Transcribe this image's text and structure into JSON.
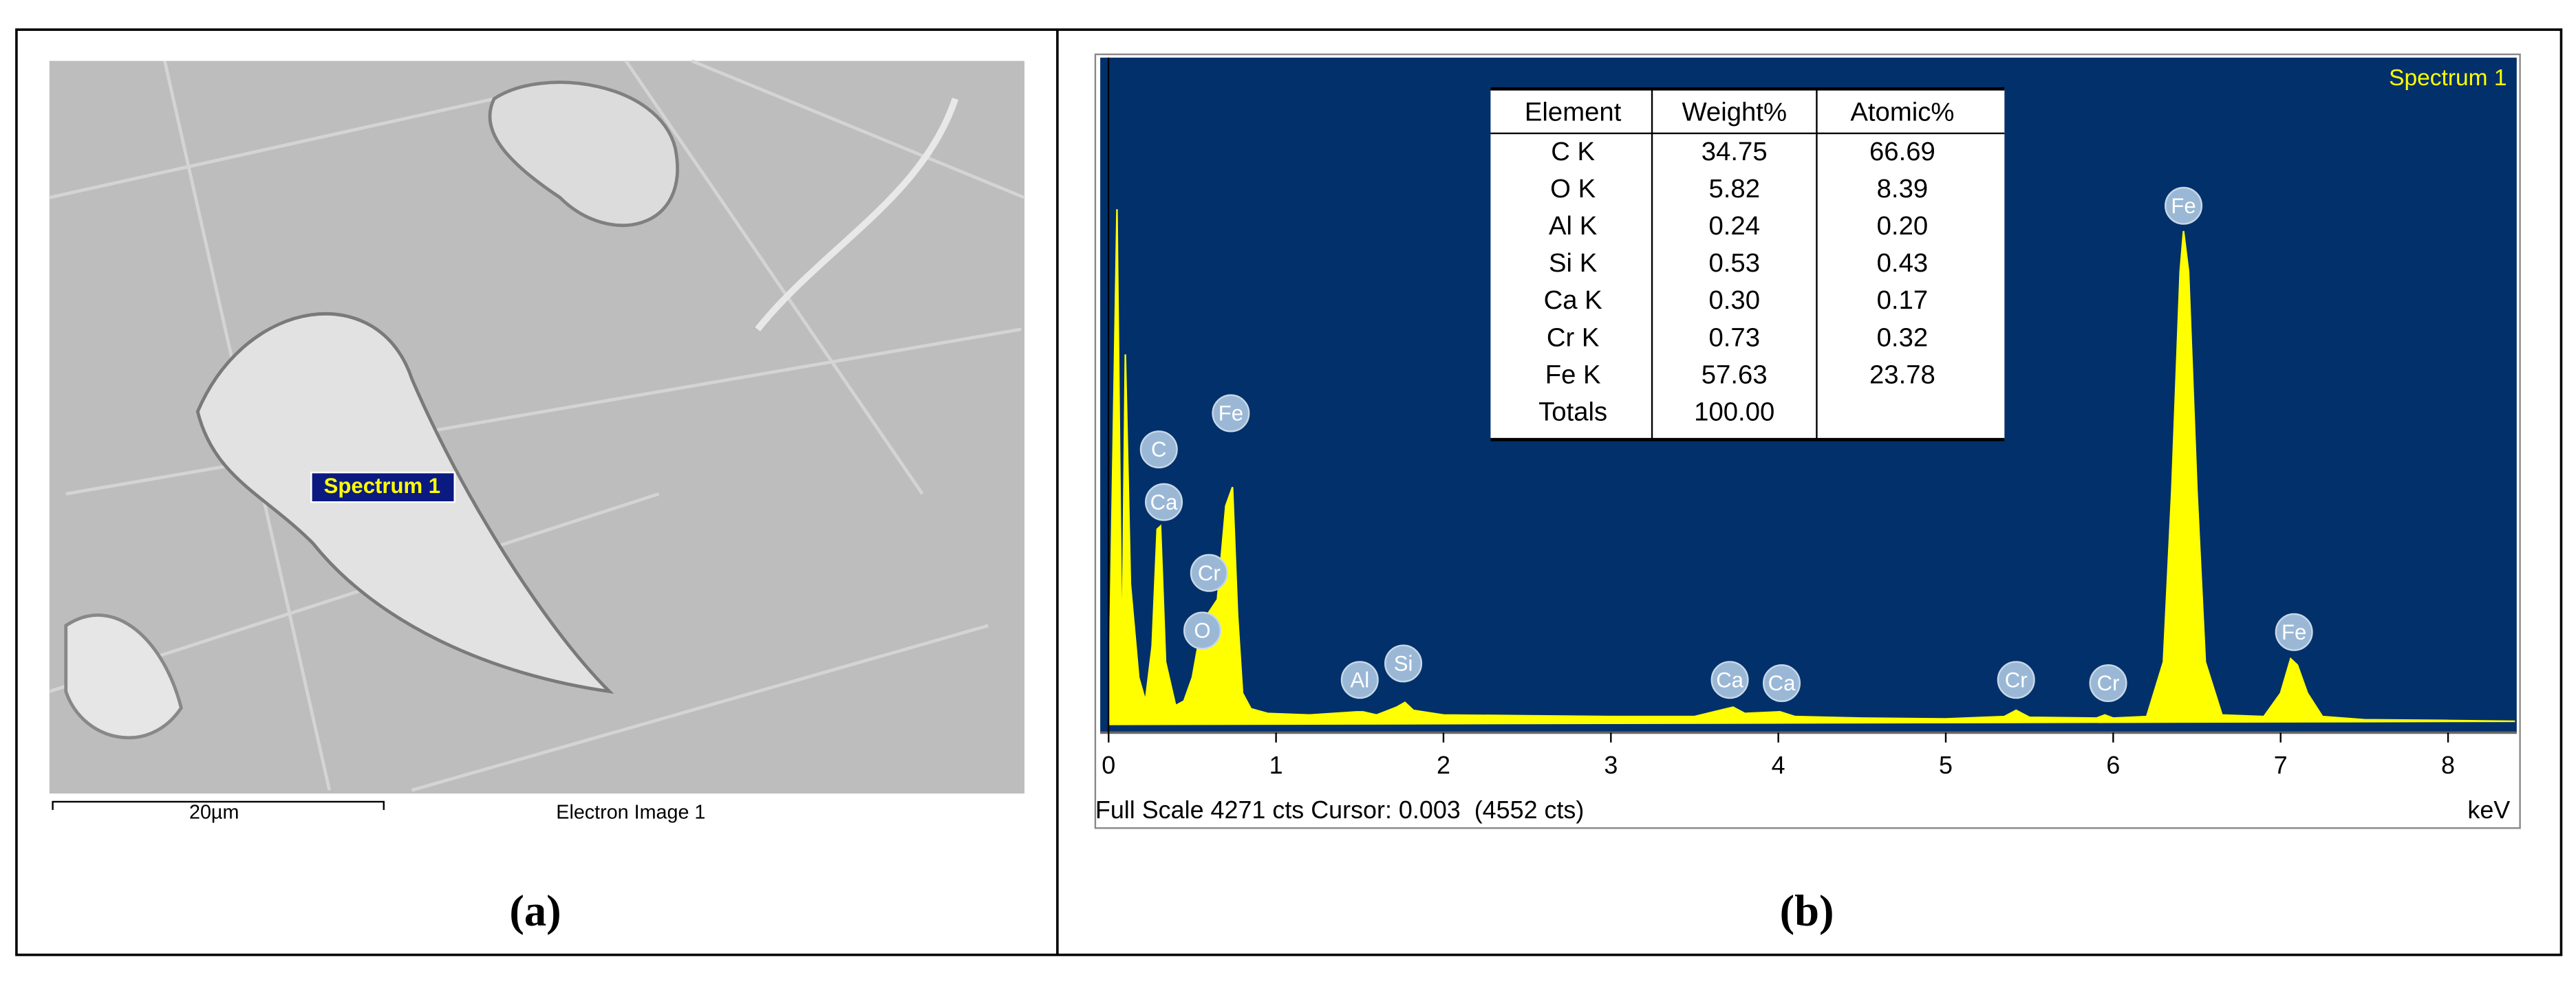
{
  "panel_a": {
    "spectrum_label": "Spectrum 1",
    "scale_bar": "20µm",
    "image_label": "Electron Image 1",
    "caption": "(a)"
  },
  "chart_data": {
    "type": "area",
    "title": "Spectrum 1",
    "color": "#ffff00",
    "background": "#02306a",
    "x": [
      0,
      0.05,
      0.08,
      0.1,
      0.13,
      0.18,
      0.22,
      0.26,
      0.29,
      0.31,
      0.34,
      0.4,
      0.45,
      0.5,
      0.55,
      0.6,
      0.65,
      0.7,
      0.74,
      0.77,
      0.8,
      0.85,
      0.95,
      1.2,
      1.48,
      1.52,
      1.6,
      1.72,
      1.77,
      1.82,
      2.0,
      2.5,
      3.0,
      3.5,
      3.69,
      3.73,
      3.8,
      4.01,
      4.1,
      4.5,
      5.0,
      5.35,
      5.42,
      5.5,
      5.9,
      5.95,
      6.0,
      6.2,
      6.3,
      6.35,
      6.4,
      6.42,
      6.45,
      6.5,
      6.55,
      6.65,
      6.9,
      7.0,
      7.06,
      7.1,
      7.16,
      7.25,
      7.5,
      8.0,
      8.4
    ],
    "values": [
      0,
      3300,
      300,
      2370,
      900,
      300,
      150,
      500,
      1250,
      1270,
      400,
      120,
      150,
      300,
      600,
      720,
      800,
      1400,
      1520,
      700,
      200,
      100,
      70,
      60,
      80,
      80,
      60,
      110,
      140,
      90,
      60,
      55,
      50,
      50,
      100,
      110,
      70,
      80,
      50,
      40,
      35,
      50,
      90,
      45,
      40,
      60,
      40,
      50,
      400,
      1500,
      2900,
      3160,
      2900,
      1500,
      400,
      60,
      50,
      200,
      420,
      380,
      200,
      50,
      30,
      25,
      20
    ],
    "xlim": [
      -0.05,
      8.41
    ],
    "xticks": [
      0,
      1,
      2,
      3,
      4,
      5,
      6,
      7,
      8
    ],
    "ylim": [
      0,
      4271
    ],
    "x_label": "keV",
    "footer": "Full Scale 4271 cts Cursor: 0.003  (4552 cts)",
    "peak_labels": [
      {
        "label": "C",
        "x": 0.3,
        "y": 1761
      },
      {
        "label": "Ca",
        "x": 0.33,
        "y": 1424
      },
      {
        "label": "Fe",
        "x": 0.73,
        "y": 1993
      },
      {
        "label": "Cr",
        "x": 0.6,
        "y": 970
      },
      {
        "label": "O",
        "x": 0.56,
        "y": 601
      },
      {
        "label": "Al",
        "x": 1.5,
        "y": 285
      },
      {
        "label": "Si",
        "x": 1.76,
        "y": 390
      },
      {
        "label": "Ca",
        "x": 3.71,
        "y": 285
      },
      {
        "label": "Ca",
        "x": 4.02,
        "y": 264
      },
      {
        "label": "Cr",
        "x": 5.42,
        "y": 285
      },
      {
        "label": "Cr",
        "x": 5.97,
        "y": 264
      },
      {
        "label": "Fe",
        "x": 6.42,
        "y": 3322
      },
      {
        "label": "Fe",
        "x": 7.08,
        "y": 591
      }
    ],
    "table": {
      "header": [
        "Element",
        "Weight%",
        "Atomic%"
      ],
      "rows": [
        [
          "C K",
          "34.75",
          "66.69"
        ],
        [
          "O K",
          "5.82",
          "8.39"
        ],
        [
          "Al K",
          "0.24",
          "0.20"
        ],
        [
          "Si K",
          "0.53",
          "0.43"
        ],
        [
          "Ca K",
          "0.30",
          "0.17"
        ],
        [
          "Cr K",
          "0.73",
          "0.32"
        ],
        [
          "Fe K",
          "57.63",
          "23.78"
        ],
        [
          "Totals",
          "100.00",
          ""
        ]
      ]
    }
  },
  "panel_b": {
    "caption": "(b)"
  }
}
